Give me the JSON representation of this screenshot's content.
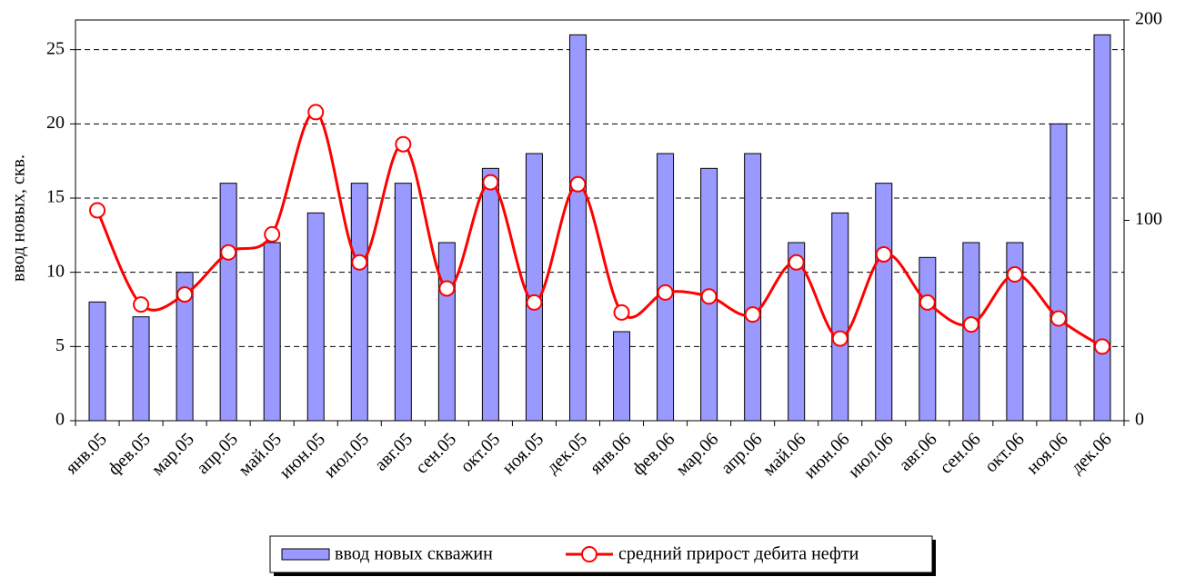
{
  "chart_data": {
    "type": "bar-line",
    "y_label": "ввод новых, скв.",
    "categories": [
      "янв.05",
      "фев.05",
      "мар.05",
      "апр.05",
      "май.05",
      "июн.05",
      "июл.05",
      "авг.05",
      "сен.05",
      "окт.05",
      "ноя.05",
      "дек.05",
      "янв.06",
      "фев.06",
      "мар.06",
      "апр.06",
      "май.06",
      "июн.06",
      "июл.06",
      "авг.06",
      "сен.06",
      "окт.06",
      "ноя.06",
      "дек.06"
    ],
    "series": [
      {
        "name": "ввод новых скважин",
        "color": "#9999ff",
        "type": "bar",
        "values": [
          8,
          7,
          10,
          16,
          12,
          14,
          16,
          16,
          12,
          17,
          18,
          26,
          6,
          18,
          17,
          18,
          12,
          14,
          16,
          11,
          12,
          12,
          20,
          26
        ]
      },
      {
        "name": "средний прирост дебита нефти",
        "color": "#ff0000",
        "type": "line",
        "axis": "y2",
        "values": [
          105,
          58,
          63,
          84,
          93,
          154,
          79,
          138,
          66,
          119,
          59,
          118,
          54,
          64,
          62,
          53,
          79,
          41,
          83,
          59,
          48,
          73,
          51,
          37
        ]
      }
    ],
    "ylim": [
      0,
      27
    ],
    "yticks": [
      0,
      5,
      10,
      15,
      20,
      25
    ],
    "y2lim": [
      0,
      200
    ],
    "y2ticks": [
      0,
      100,
      200
    ],
    "grid": true
  }
}
